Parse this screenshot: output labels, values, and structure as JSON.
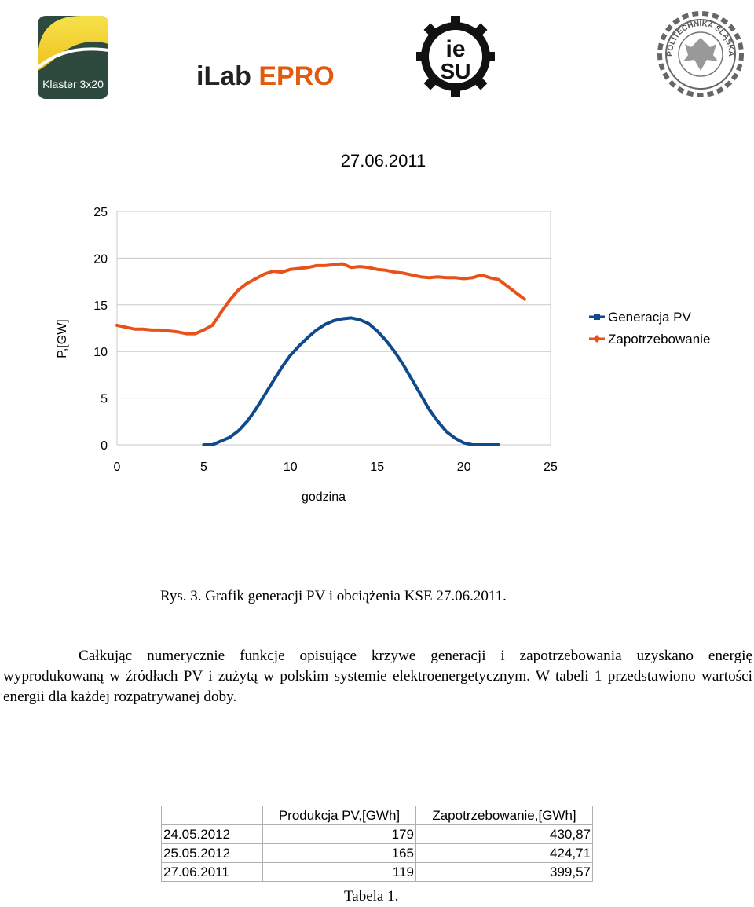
{
  "header": {
    "logo_klaster_text": "Klaster 3x20",
    "logo_ilab_text_a": "iLab ",
    "logo_ilab_text_b": "EPRO",
    "logo_iesu_text_1": "ie",
    "logo_iesu_text_2": "SU",
    "logo_polsl_text": "POLITECHNIKA ŚLĄSKA"
  },
  "chart_data": {
    "type": "line",
    "title": "27.06.2011",
    "xlabel": "godzina",
    "ylabel": "P,[GW]",
    "xlim": [
      0,
      25
    ],
    "ylim": [
      0,
      25
    ],
    "xticks": [
      "0",
      "5",
      "10",
      "15",
      "20",
      "25"
    ],
    "yticks": [
      "0",
      "5",
      "10",
      "15",
      "20",
      "25"
    ],
    "grid": "horizontal",
    "legend_position": "right",
    "series": [
      {
        "name": "Generacja PV",
        "color": "#0e4a8c",
        "x": [
          5,
          5.5,
          6,
          6.5,
          7,
          7.5,
          8,
          8.5,
          9,
          9.5,
          10,
          10.5,
          11,
          11.5,
          12,
          12.5,
          13,
          13.5,
          14,
          14.5,
          15,
          15.5,
          16,
          16.5,
          17,
          17.5,
          18,
          18.5,
          19,
          19.5,
          20,
          20.5,
          21,
          21.5,
          22
        ],
        "y": [
          0,
          0,
          0.4,
          0.8,
          1.5,
          2.5,
          3.8,
          5.3,
          6.8,
          8.3,
          9.6,
          10.6,
          11.5,
          12.3,
          12.9,
          13.3,
          13.5,
          13.6,
          13.4,
          13.0,
          12.2,
          11.2,
          10.0,
          8.6,
          7.0,
          5.4,
          3.8,
          2.5,
          1.4,
          0.7,
          0.2,
          0,
          0,
          0,
          0
        ]
      },
      {
        "name": "Zapotrzebowanie",
        "color": "#e8521a",
        "x": [
          0,
          0.5,
          1,
          1.5,
          2,
          2.5,
          3,
          3.5,
          4,
          4.5,
          5,
          5.5,
          6,
          6.5,
          7,
          7.5,
          8,
          8.5,
          9,
          9.5,
          10,
          10.5,
          11,
          11.5,
          12,
          12.5,
          13,
          13.5,
          14,
          14.5,
          15,
          15.5,
          16,
          16.5,
          17,
          17.5,
          18,
          18.5,
          19,
          19.5,
          20,
          20.5,
          21,
          21.5,
          22,
          22.5,
          23,
          23.5
        ],
        "y": [
          12.8,
          12.6,
          12.4,
          12.4,
          12.3,
          12.3,
          12.2,
          12.1,
          11.9,
          11.9,
          12.3,
          12.8,
          14.2,
          15.5,
          16.6,
          17.3,
          17.8,
          18.3,
          18.6,
          18.5,
          18.8,
          18.9,
          19.0,
          19.2,
          19.2,
          19.3,
          19.4,
          19.0,
          19.1,
          19.0,
          18.8,
          18.7,
          18.5,
          18.4,
          18.2,
          18.0,
          17.9,
          18.0,
          17.9,
          17.9,
          17.8,
          17.9,
          18.2,
          17.9,
          17.7,
          17.0,
          16.3,
          15.6
        ]
      }
    ]
  },
  "figure_caption": "Rys. 3. Grafik generacji PV i obciążenia KSE 27.06.2011.",
  "paragraph": "Całkując numerycznie funkcje opisujące krzywe generacji i zapotrzebowania uzyskano energię wyprodukowaną w źródłach PV i zużytą w polskim systemie elektroenergetycznym. W tabeli 1 przedstawiono wartości energii dla każdej rozpatrywanej doby.",
  "table": {
    "headers": [
      "",
      "Produkcja PV,[GWh]",
      "Zapotrzebowanie,[GWh]"
    ],
    "rows": [
      [
        "24.05.2012",
        "179",
        "430,87"
      ],
      [
        "25.05.2012",
        "165",
        "424,71"
      ],
      [
        "27.06.2011",
        "119",
        "399,57"
      ]
    ],
    "caption": "Tabela 1."
  }
}
